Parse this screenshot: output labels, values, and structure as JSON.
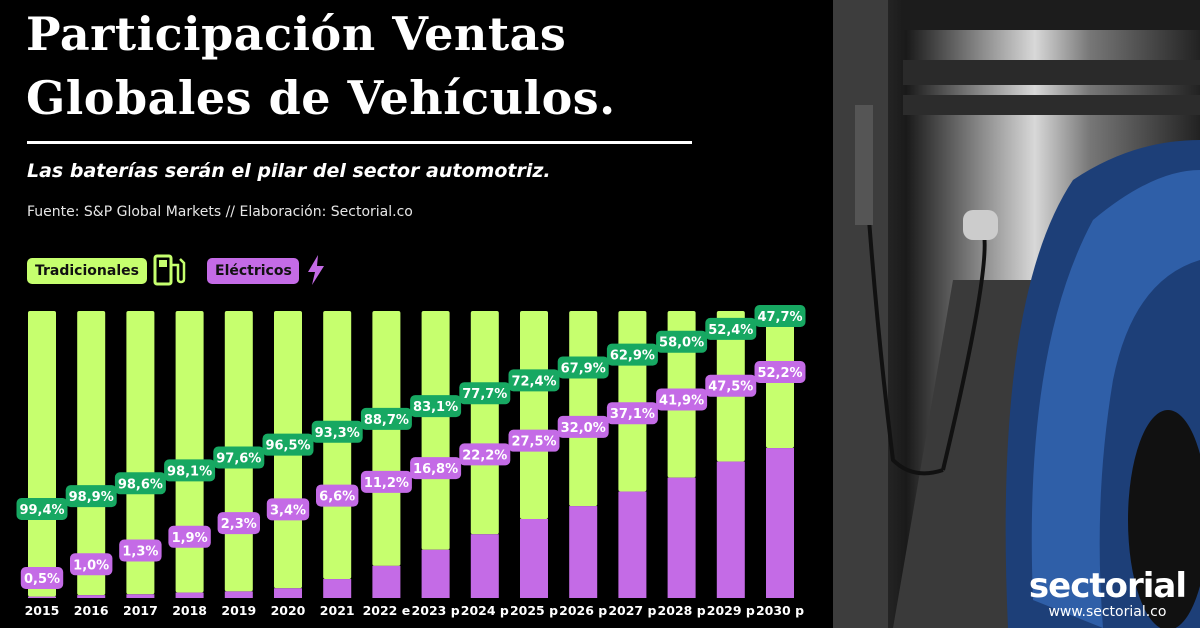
{
  "header": {
    "title_line1": "Participación Ventas",
    "title_line2": "Globales de Vehículos.",
    "subtitle": "Las baterías serán el pilar del sector automotriz.",
    "source": "Fuente: S&P Global Markets // Elaboración: Sectorial.co"
  },
  "legend": {
    "traditional": "Tradicionales",
    "electric": "Eléctricos",
    "traditional_icon": "fuel-pump-icon",
    "electric_icon": "lightning-icon"
  },
  "brand": {
    "name": "sectorial",
    "url": "www.sectorial.co"
  },
  "colors": {
    "traditional": "#c6ff6e",
    "traditional_label": "#17a862",
    "electric": "#c46be6",
    "background": "#000000"
  },
  "chart_data": {
    "type": "bar",
    "stacked": true,
    "ylim": [
      0,
      100
    ],
    "categories": [
      "2015",
      "2016",
      "2017",
      "2018",
      "2019",
      "2020",
      "2021",
      "2022 e",
      "2023 p",
      "2024 p",
      "2025 p",
      "2026 p",
      "2027 p",
      "2028 p",
      "2029 p",
      "2030 p"
    ],
    "series": [
      {
        "name": "Tradicionales",
        "values": [
          99.4,
          98.9,
          98.6,
          98.1,
          97.6,
          96.5,
          93.3,
          88.7,
          83.1,
          77.7,
          72.4,
          67.9,
          62.9,
          58.0,
          52.4,
          47.7
        ],
        "labels": [
          "99,4%",
          "98,9%",
          "98,6%",
          "98,1%",
          "97,6%",
          "96,5%",
          "93,3%",
          "88,7%",
          "83,1%",
          "77,7%",
          "72,4%",
          "67,9%",
          "62,9%",
          "58,0%",
          "52,4%",
          "47,7%"
        ]
      },
      {
        "name": "Eléctricos",
        "values": [
          0.5,
          1.0,
          1.3,
          1.9,
          2.3,
          3.4,
          6.6,
          11.2,
          16.8,
          22.2,
          27.5,
          32.0,
          37.1,
          41.9,
          47.5,
          52.2
        ],
        "labels": [
          "0,5%",
          "1,0%",
          "1,3%",
          "1,9%",
          "2,3%",
          "3,4%",
          "6,6%",
          "11,2%",
          "16,8%",
          "22,2%",
          "27,5%",
          "32,0%",
          "37,1%",
          "41,9%",
          "47,5%",
          "52,2%"
        ]
      }
    ]
  }
}
